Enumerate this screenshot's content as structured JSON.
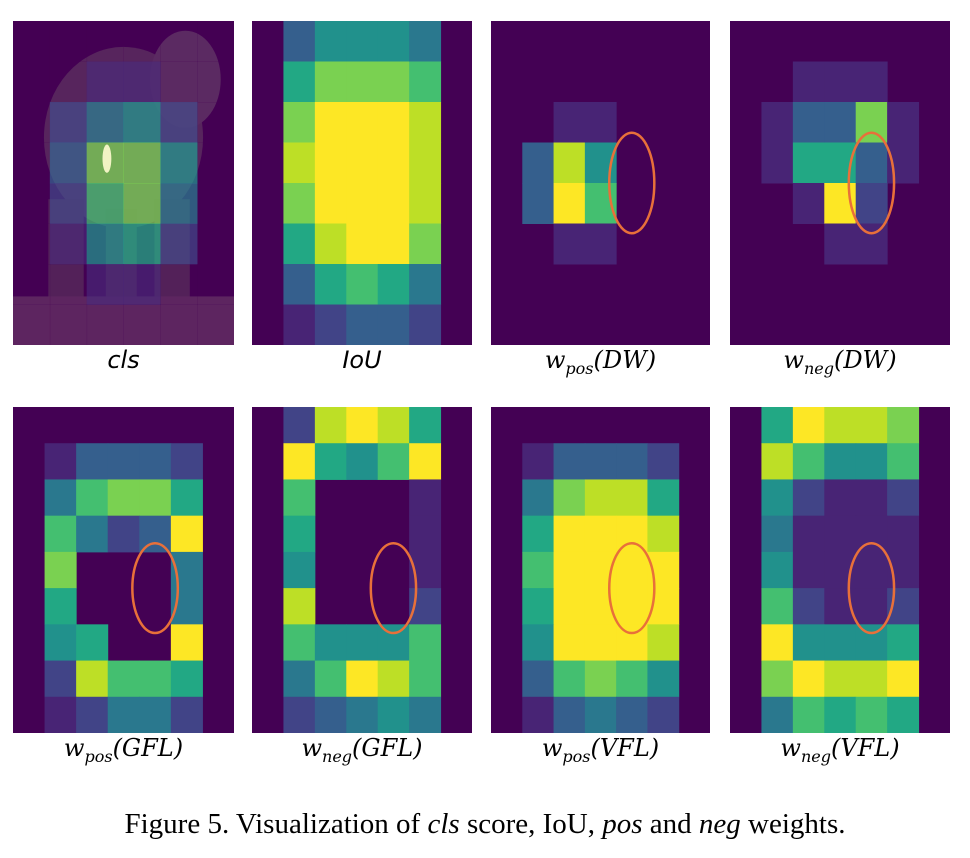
{
  "figure": {
    "caption": {
      "prefix": "Figure 5. Visualization of ",
      "cls": "cls",
      "mid1": " score, IoU, ",
      "pos": "pos",
      "mid2": " and ",
      "neg": "neg",
      "suffix": " weights."
    },
    "colors": {
      "background": "#440154",
      "highlight_ellipse": "#e8703a",
      "palette": [
        "#440154",
        "#482475",
        "#414487",
        "#355f8d",
        "#2a788e",
        "#21918c",
        "#22a884",
        "#44bf70",
        "#7ad151",
        "#bddf26",
        "#fde725"
      ]
    },
    "panels": [
      {
        "id": "cls",
        "label": {
          "main": "cls",
          "sub": "",
          "arg": ""
        },
        "has_photo": true,
        "photo_subject": "elephant",
        "grid": [
          [
            0,
            0,
            0,
            0,
            0,
            0
          ],
          [
            0,
            0,
            1,
            1,
            0,
            0
          ],
          [
            0,
            2,
            4,
            5,
            2,
            0
          ],
          [
            0,
            3,
            8,
            8,
            5,
            0
          ],
          [
            0,
            2,
            7,
            8,
            4,
            0
          ],
          [
            0,
            1,
            5,
            6,
            2,
            0
          ],
          [
            0,
            0,
            1,
            1,
            0,
            0
          ],
          [
            0,
            0,
            0,
            0,
            0,
            0
          ]
        ]
      },
      {
        "id": "iou",
        "label": {
          "main": "IoU",
          "sub": "",
          "arg": ""
        },
        "has_photo": false,
        "grid": [
          [
            0,
            3,
            5,
            5,
            5,
            4,
            0
          ],
          [
            0,
            6,
            8,
            8,
            8,
            7,
            0
          ],
          [
            0,
            8,
            10,
            10,
            10,
            9,
            0
          ],
          [
            0,
            9,
            10,
            10,
            10,
            9,
            0
          ],
          [
            0,
            8,
            10,
            10,
            10,
            9,
            0
          ],
          [
            0,
            6,
            9,
            10,
            10,
            8,
            0
          ],
          [
            0,
            3,
            6,
            7,
            6,
            4,
            0
          ],
          [
            0,
            1,
            2,
            3,
            3,
            2,
            0
          ]
        ]
      },
      {
        "id": "wpos_dw",
        "label": {
          "main": "w",
          "sub": "pos",
          "arg": "(DW)"
        },
        "has_photo": false,
        "ellipse": {
          "col": 4,
          "row": 3,
          "rows": 2
        },
        "grid": [
          [
            0,
            0,
            0,
            0,
            0,
            0,
            0
          ],
          [
            0,
            0,
            0,
            0,
            0,
            0,
            0
          ],
          [
            0,
            0,
            1,
            1,
            0,
            0,
            0
          ],
          [
            0,
            3,
            9,
            5,
            0,
            0,
            0
          ],
          [
            0,
            3,
            10,
            7,
            0,
            0,
            0
          ],
          [
            0,
            0,
            1,
            1,
            0,
            0,
            0
          ],
          [
            0,
            0,
            0,
            0,
            0,
            0,
            0
          ],
          [
            0,
            0,
            0,
            0,
            0,
            0,
            0
          ]
        ]
      },
      {
        "id": "wneg_dw",
        "label": {
          "main": "w",
          "sub": "neg",
          "arg": "(DW)"
        },
        "has_photo": false,
        "ellipse": {
          "col": 4,
          "row": 3,
          "rows": 2
        },
        "grid": [
          [
            0,
            0,
            0,
            0,
            0,
            0,
            0
          ],
          [
            0,
            0,
            1,
            1,
            1,
            0,
            0
          ],
          [
            0,
            1,
            3,
            3,
            8,
            1,
            0
          ],
          [
            0,
            1,
            6,
            6,
            3,
            1,
            0
          ],
          [
            0,
            0,
            1,
            10,
            2,
            0,
            0
          ],
          [
            0,
            0,
            0,
            1,
            1,
            0,
            0
          ],
          [
            0,
            0,
            0,
            0,
            0,
            0,
            0
          ],
          [
            0,
            0,
            0,
            0,
            0,
            0,
            0
          ]
        ]
      },
      {
        "id": "wpos_gfl",
        "label": {
          "main": "w",
          "sub": "pos",
          "arg": "(GFL)"
        },
        "has_photo": false,
        "ellipse": {
          "col": 4,
          "row": 4,
          "rows": 2
        },
        "grid": [
          [
            0,
            0,
            0,
            0,
            0,
            0,
            0
          ],
          [
            0,
            1,
            3,
            3,
            3,
            2,
            0
          ],
          [
            0,
            4,
            7,
            8,
            8,
            6,
            0
          ],
          [
            0,
            7,
            4,
            2,
            3,
            10,
            0
          ],
          [
            0,
            8,
            0,
            0,
            0,
            4,
            0
          ],
          [
            0,
            6,
            0,
            0,
            0,
            4,
            0
          ],
          [
            0,
            5,
            6,
            0,
            0,
            10,
            0
          ],
          [
            0,
            2,
            9,
            7,
            7,
            6,
            0
          ],
          [
            0,
            1,
            2,
            4,
            4,
            2,
            0
          ]
        ]
      },
      {
        "id": "wneg_gfl",
        "label": {
          "main": "w",
          "sub": "neg",
          "arg": "(GFL)"
        },
        "has_photo": false,
        "ellipse": {
          "col": 4,
          "row": 4,
          "rows": 2
        },
        "grid": [
          [
            0,
            2,
            9,
            10,
            9,
            6,
            0
          ],
          [
            0,
            10,
            6,
            5,
            7,
            10,
            0
          ],
          [
            0,
            7,
            0,
            0,
            0,
            1,
            0
          ],
          [
            0,
            6,
            0,
            0,
            0,
            1,
            0
          ],
          [
            0,
            5,
            0,
            0,
            0,
            1,
            0
          ],
          [
            0,
            9,
            0,
            0,
            0,
            2,
            0
          ],
          [
            0,
            7,
            5,
            5,
            5,
            7,
            0
          ],
          [
            0,
            4,
            7,
            10,
            9,
            7,
            0
          ],
          [
            0,
            2,
            3,
            4,
            5,
            4,
            0
          ]
        ]
      },
      {
        "id": "wpos_vfl",
        "label": {
          "main": "w",
          "sub": "pos",
          "arg": "(VFL)"
        },
        "has_photo": false,
        "ellipse": {
          "col": 4,
          "row": 4,
          "rows": 2
        },
        "grid": [
          [
            0,
            0,
            0,
            0,
            0,
            0,
            0
          ],
          [
            0,
            1,
            3,
            3,
            3,
            2,
            0
          ],
          [
            0,
            4,
            8,
            9,
            9,
            6,
            0
          ],
          [
            0,
            6,
            10,
            10,
            10,
            9,
            0
          ],
          [
            0,
            7,
            10,
            10,
            10,
            10,
            0
          ],
          [
            0,
            6,
            10,
            10,
            10,
            10,
            0
          ],
          [
            0,
            5,
            10,
            10,
            10,
            9,
            0
          ],
          [
            0,
            3,
            7,
            8,
            7,
            5,
            0
          ],
          [
            0,
            1,
            3,
            4,
            3,
            2,
            0
          ]
        ]
      },
      {
        "id": "wneg_vfl",
        "label": {
          "main": "w",
          "sub": "neg",
          "arg": "(VFL)"
        },
        "has_photo": false,
        "ellipse": {
          "col": 4,
          "row": 4,
          "rows": 2
        },
        "grid": [
          [
            0,
            6,
            10,
            9,
            9,
            8,
            0
          ],
          [
            0,
            9,
            7,
            5,
            5,
            7,
            0
          ],
          [
            0,
            5,
            2,
            1,
            1,
            2,
            0
          ],
          [
            0,
            4,
            1,
            1,
            1,
            1,
            0
          ],
          [
            0,
            5,
            1,
            1,
            1,
            1,
            0
          ],
          [
            0,
            7,
            2,
            1,
            1,
            2,
            0
          ],
          [
            0,
            10,
            5,
            5,
            5,
            6,
            0
          ],
          [
            0,
            8,
            10,
            9,
            9,
            10,
            0
          ],
          [
            0,
            4,
            7,
            6,
            7,
            6,
            0
          ]
        ]
      }
    ]
  }
}
